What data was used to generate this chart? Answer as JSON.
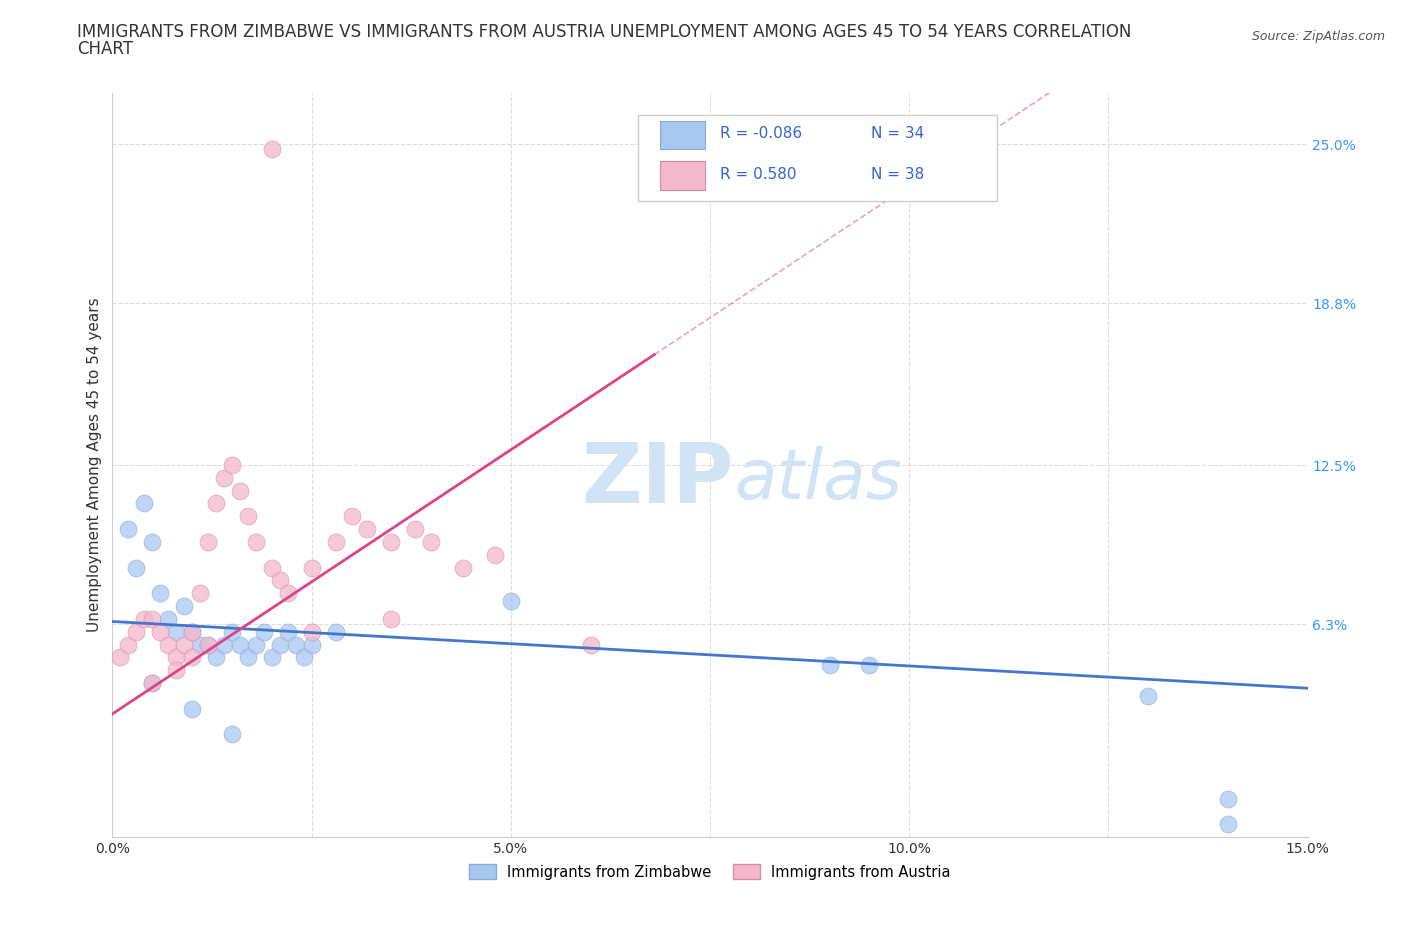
{
  "title_line1": "IMMIGRANTS FROM ZIMBABWE VS IMMIGRANTS FROM AUSTRIA UNEMPLOYMENT AMONG AGES 45 TO 54 YEARS CORRELATION",
  "title_line2": "CHART",
  "source": "Source: ZipAtlas.com",
  "ylabel": "Unemployment Among Ages 45 to 54 years",
  "xlim": [
    0.0,
    0.15
  ],
  "ylim": [
    -0.02,
    0.27
  ],
  "yticks": [
    0.0,
    0.063,
    0.125,
    0.188,
    0.25
  ],
  "ytick_labels": [
    "",
    "6.3%",
    "12.5%",
    "18.8%",
    "25.0%"
  ],
  "xticks": [
    0.0,
    0.025,
    0.05,
    0.075,
    0.1,
    0.125,
    0.15
  ],
  "xtick_labels": [
    "0.0%",
    "",
    "5.0%",
    "",
    "10.0%",
    "",
    "15.0%"
  ],
  "watermark_zip": "ZIP",
  "watermark_atlas": "atlas",
  "legend_entries": [
    "Immigrants from Zimbabwe",
    "Immigrants from Austria"
  ],
  "legend_R": [
    -0.086,
    0.58
  ],
  "legend_N": [
    34,
    38
  ],
  "scatter_color_zimbabwe": "#a8c8f0",
  "scatter_edge_zimbabwe": "#88aadd",
  "scatter_color_austria": "#f4b8cc",
  "scatter_edge_austria": "#dd88aa",
  "trendline_color_zimbabwe": "#4477cc",
  "trendline_color_austria": "#dd4488",
  "background_color": "#ffffff",
  "grid_color": "#dddddd",
  "text_color": "#333333",
  "tick_color_right": "#3399ff",
  "title_fontsize": 12,
  "label_fontsize": 11,
  "tick_fontsize": 10,
  "watermark_color": "#d0e4f5",
  "watermark_fontsize_zip": 60,
  "watermark_fontsize_atlas": 50,
  "zimbabwe_x": [
    0.002,
    0.003,
    0.004,
    0.005,
    0.006,
    0.007,
    0.008,
    0.009,
    0.01,
    0.011,
    0.012,
    0.013,
    0.014,
    0.015,
    0.016,
    0.017,
    0.018,
    0.019,
    0.02,
    0.021,
    0.022,
    0.023,
    0.024,
    0.025,
    0.028,
    0.005,
    0.01,
    0.015,
    0.05,
    0.09,
    0.095,
    0.13,
    0.14,
    0.14
  ],
  "zimbabwe_y": [
    0.1,
    0.085,
    0.11,
    0.095,
    0.075,
    0.065,
    0.06,
    0.07,
    0.06,
    0.055,
    0.055,
    0.05,
    0.055,
    0.06,
    0.055,
    0.05,
    0.055,
    0.06,
    0.05,
    0.055,
    0.06,
    0.055,
    0.05,
    0.055,
    0.06,
    0.04,
    0.03,
    0.02,
    0.072,
    0.047,
    0.047,
    0.035,
    -0.005,
    -0.015
  ],
  "austria_x": [
    0.001,
    0.002,
    0.003,
    0.004,
    0.005,
    0.006,
    0.007,
    0.008,
    0.009,
    0.01,
    0.011,
    0.012,
    0.013,
    0.014,
    0.015,
    0.016,
    0.017,
    0.018,
    0.02,
    0.021,
    0.022,
    0.025,
    0.028,
    0.03,
    0.032,
    0.035,
    0.038,
    0.04,
    0.044,
    0.048,
    0.005,
    0.008,
    0.01,
    0.012,
    0.025,
    0.035,
    0.06,
    0.02
  ],
  "austria_y": [
    0.05,
    0.055,
    0.06,
    0.065,
    0.065,
    0.06,
    0.055,
    0.05,
    0.055,
    0.06,
    0.075,
    0.095,
    0.11,
    0.12,
    0.125,
    0.115,
    0.105,
    0.095,
    0.085,
    0.08,
    0.075,
    0.085,
    0.095,
    0.105,
    0.1,
    0.095,
    0.1,
    0.095,
    0.085,
    0.09,
    0.04,
    0.045,
    0.05,
    0.055,
    0.06,
    0.065,
    0.055,
    0.248
  ],
  "austria_trend_x": [
    0.0,
    0.068
  ],
  "austria_trend_y": [
    0.028,
    0.168
  ],
  "zimbabwe_trend_x": [
    0.0,
    0.15
  ],
  "zimbabwe_trend_y": [
    0.064,
    0.038
  ]
}
